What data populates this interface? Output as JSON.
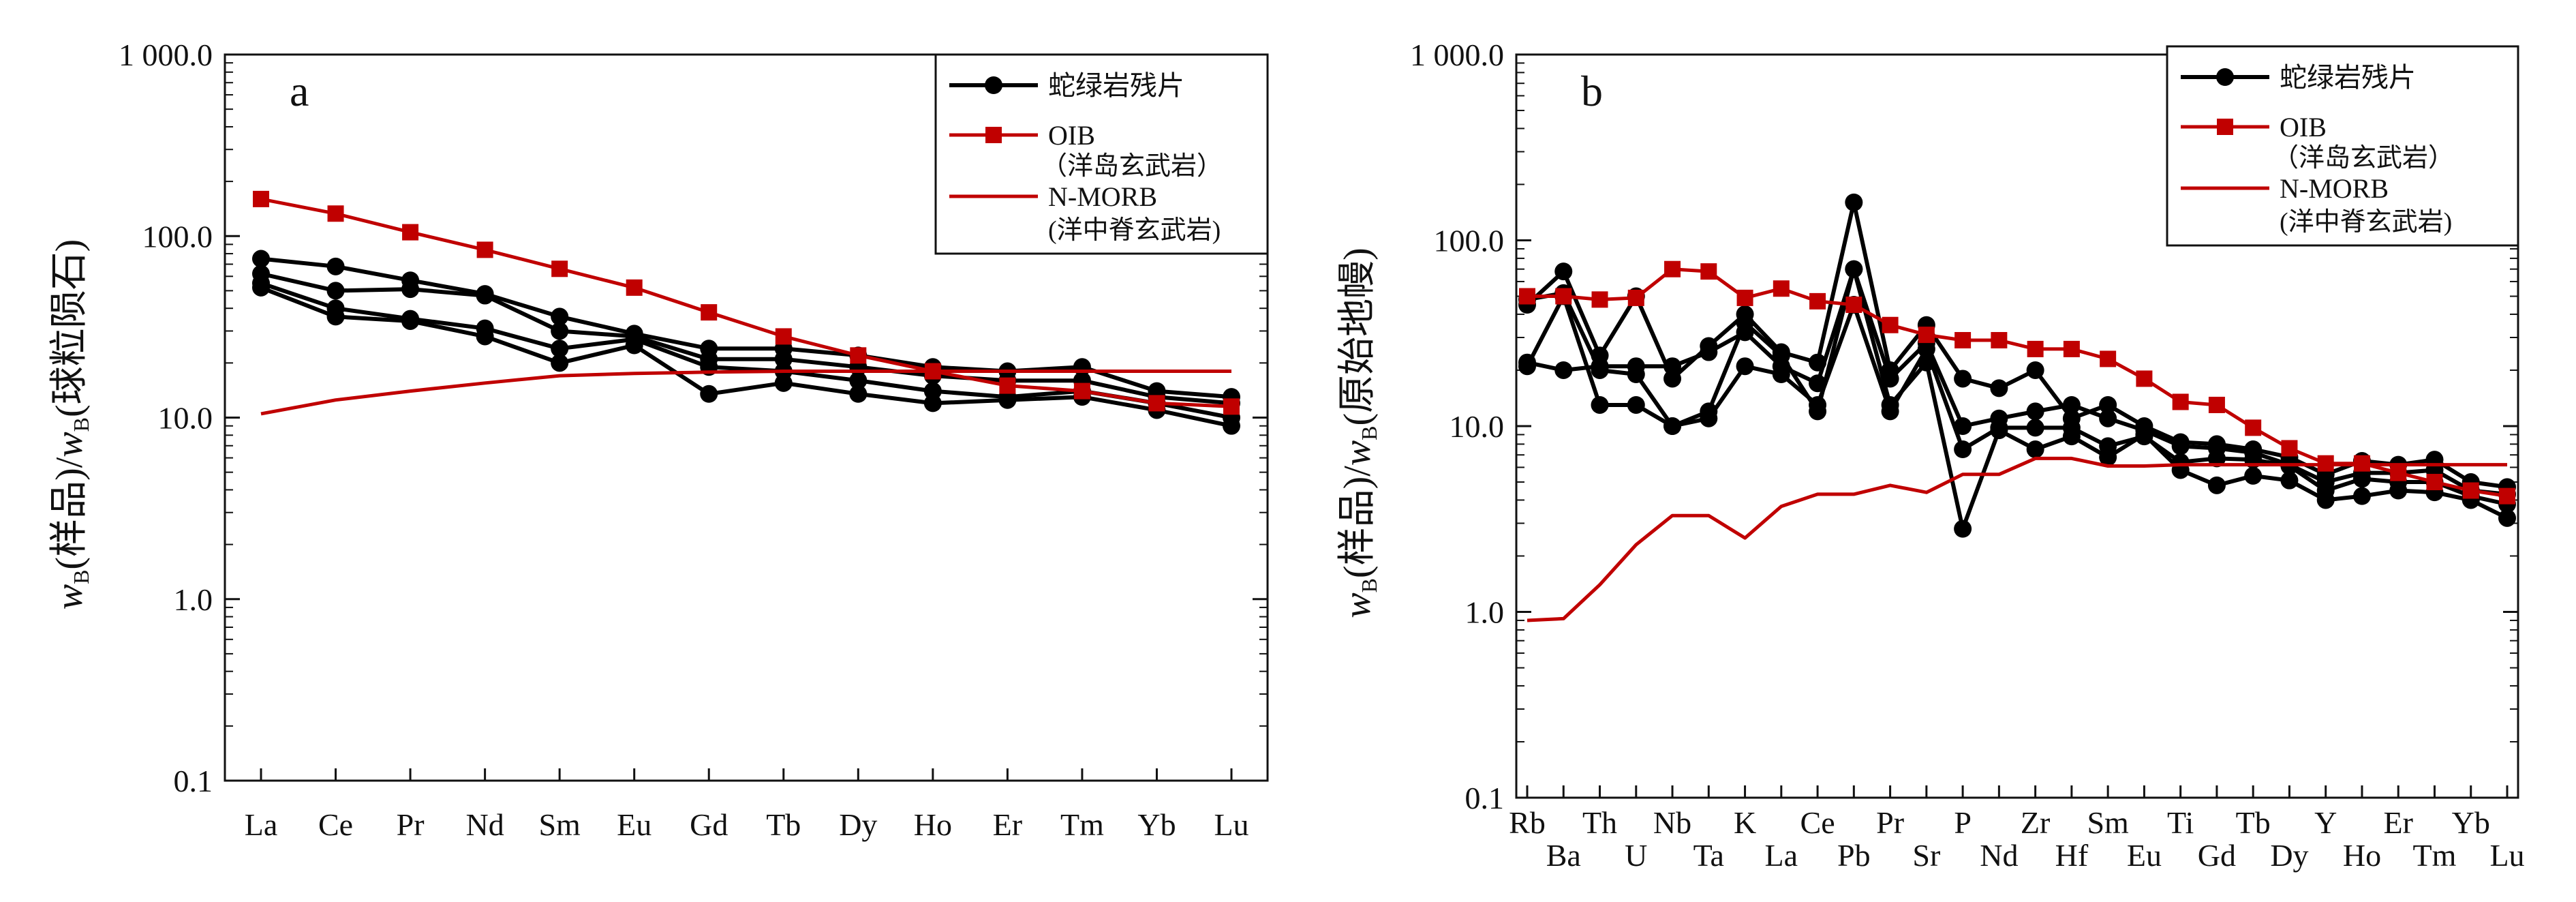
{
  "colors": {
    "sample": "#000000",
    "oib": "#c00000",
    "nmorb": "#c00000",
    "axis": "#111111"
  },
  "legend": {
    "serpentinite": "蛇绿岩残片",
    "oib_line1": "OIB",
    "oib_line2": "（洋岛玄武岩）",
    "nmorb_line1": "N-MORB",
    "nmorb_line2": "(洋中脊玄武岩)"
  },
  "chart_data": [
    {
      "panel": "a",
      "type": "line",
      "yscale": "log",
      "ylim": [
        0.1,
        1000
      ],
      "yticks": [
        "0.1",
        "1.0",
        "10.0",
        "100.0",
        "1 000.0"
      ],
      "ylabel_w": "w",
      "ylabel_sub": "B",
      "ylabel_text": "(样品)/",
      "ylabel_text2": "(球粒陨石)",
      "categories": [
        "La",
        "Ce",
        "Pr",
        "Nd",
        "Sm",
        "Eu",
        "Gd",
        "Tb",
        "Dy",
        "Ho",
        "Er",
        "Tm",
        "Yb",
        "Lu"
      ],
      "series": [
        {
          "name": "蛇绿岩残片",
          "kind": "sample",
          "values": [
            75,
            68,
            57,
            48,
            36,
            29,
            24,
            24,
            22,
            19,
            18,
            19,
            14,
            13
          ]
        },
        {
          "name": "蛇绿岩残片",
          "kind": "sample",
          "values": [
            62,
            50,
            51,
            47,
            30,
            28,
            21,
            21,
            19,
            17,
            16,
            16,
            13,
            12
          ]
        },
        {
          "name": "蛇绿岩残片",
          "kind": "sample",
          "values": [
            55,
            40,
            35,
            31,
            24,
            27,
            19,
            18,
            16,
            14,
            13,
            14,
            12,
            10
          ]
        },
        {
          "name": "蛇绿岩残片",
          "kind": "sample",
          "values": [
            52,
            36,
            34,
            28,
            20,
            25,
            13.5,
            15.5,
            13.5,
            12,
            12.5,
            13,
            11,
            9
          ]
        },
        {
          "name": "OIB",
          "kind": "oib",
          "values": [
            160,
            133,
            105,
            84,
            66,
            52,
            38,
            28,
            22,
            18,
            15,
            14,
            12,
            11.5
          ]
        },
        {
          "name": "N-MORB",
          "kind": "nmorb",
          "values": [
            10.5,
            12.5,
            14,
            15.5,
            17,
            17.5,
            17.8,
            18,
            18,
            18,
            18,
            18,
            18,
            18
          ]
        }
      ]
    },
    {
      "panel": "b",
      "type": "line",
      "yscale": "log",
      "ylim": [
        0.1,
        1000
      ],
      "yticks": [
        "0.1",
        "1.0",
        "10.0",
        "100.0",
        "1 000.0"
      ],
      "ylabel_w": "w",
      "ylabel_sub": "B",
      "ylabel_text": "(样品)/",
      "ylabel_text2": "(原始地幔)",
      "categories": [
        "Rb",
        "Ba",
        "Th",
        "U",
        "Nb",
        "Ta",
        "K",
        "La",
        "Ce",
        "Pb",
        "Pr",
        "Sr",
        "P",
        "Nd",
        "Zr",
        "Hf",
        "Sm",
        "Eu",
        "Ti",
        "Gd",
        "Tb",
        "Dy",
        "Y",
        "Ho",
        "Er",
        "Tm",
        "Yb",
        "Lu"
      ],
      "series": [
        {
          "name": "蛇绿岩残片",
          "kind": "sample",
          "values": [
            45,
            68,
            24,
            50,
            18,
            27,
            40,
            25,
            22,
            160,
            20,
            35,
            18,
            16,
            20,
            11,
            13,
            10,
            8.2,
            8,
            7.5,
            6.8,
            5.5,
            6.5,
            6.2,
            6.6,
            5,
            4.7
          ]
        },
        {
          "name": "蛇绿岩残片",
          "kind": "sample",
          "values": [
            22,
            20,
            21,
            21,
            21,
            25,
            32,
            21,
            17,
            70,
            18,
            28,
            10,
            11,
            12,
            13,
            11,
            9.5,
            7.8,
            7.6,
            7.2,
            6.2,
            5,
            5.6,
            5.6,
            5.8,
            4.5,
            4.3
          ]
        },
        {
          "name": "蛇绿岩残片",
          "kind": "sample",
          "values": [
            21,
            50,
            13,
            13,
            10,
            11,
            21,
            19,
            13,
            45,
            12,
            26,
            7.5,
            9.8,
            9.8,
            9.8,
            7.8,
            8.8,
            6.4,
            6.7,
            6.6,
            6.1,
            4.5,
            5.2,
            5,
            5,
            4.2,
            3.8
          ]
        },
        {
          "name": "蛇绿岩残片",
          "kind": "sample",
          "values": [
            48,
            52,
            20,
            19,
            10,
            12,
            36,
            24,
            12,
            70,
            13,
            22,
            2.8,
            9.5,
            7.5,
            8.8,
            6.8,
            9,
            5.8,
            4.8,
            5.4,
            5.1,
            4,
            4.2,
            4.5,
            4.4,
            4,
            3.2
          ]
        },
        {
          "name": "OIB",
          "kind": "oib",
          "values": [
            50,
            50,
            48,
            49,
            70,
            68,
            49,
            55,
            47,
            45,
            35,
            31,
            29,
            29,
            26,
            26,
            23,
            18,
            13.5,
            13,
            9.8,
            7.6,
            6.3,
            6.3,
            5.6,
            5,
            4.5,
            4.2
          ]
        },
        {
          "name": "N-MORB",
          "kind": "nmorb",
          "values": [
            0.9,
            0.92,
            1.4,
            2.3,
            3.3,
            3.3,
            2.5,
            3.7,
            4.3,
            4.3,
            4.8,
            4.4,
            5.5,
            5.5,
            6.7,
            6.7,
            6.1,
            6.1,
            6.2,
            6.2,
            6.2,
            6.2,
            6.2,
            6.2,
            6.2,
            6.2,
            6.2,
            6.2
          ]
        }
      ]
    }
  ]
}
